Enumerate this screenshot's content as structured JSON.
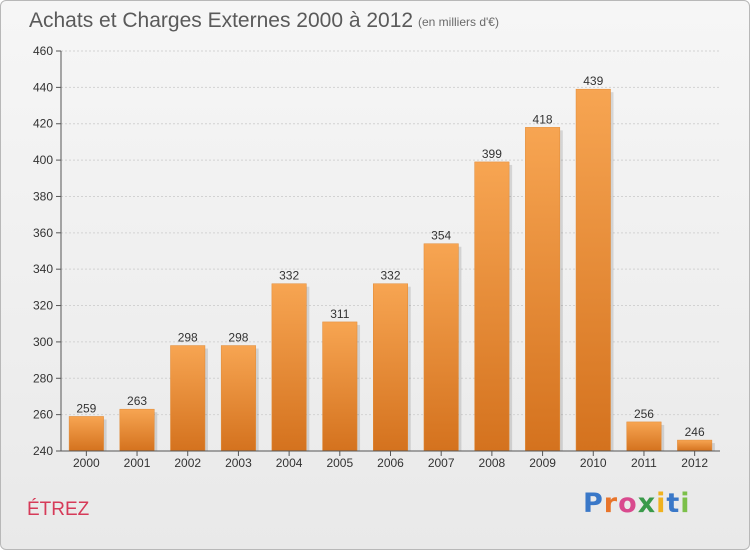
{
  "header": {
    "title": "Achats et Charges Externes 2000 à 2012",
    "subtitle": "(en milliers d'€)"
  },
  "footer": {
    "location": "ÉTREZ",
    "logo_text": "Proxiti",
    "logo_colors": [
      "#3a78c8",
      "#e8742a",
      "#d94a8e",
      "#3a9a4a",
      "#f0b21e",
      "#3a78c8",
      "#7cc04a"
    ]
  },
  "colors": {
    "bar_top": "#f7a552",
    "bar_bottom": "#d4721e",
    "axis": "#555555",
    "grid": "#d2d2d2",
    "text": "#333333"
  },
  "chart_data": {
    "type": "bar",
    "title": "Achats et Charges Externes 2000 à 2012",
    "subtitle": "(en milliers d'€)",
    "categories": [
      "2000",
      "2001",
      "2002",
      "2003",
      "2004",
      "2005",
      "2006",
      "2007",
      "2008",
      "2009",
      "2010",
      "2011",
      "2012"
    ],
    "values": [
      259,
      263,
      298,
      298,
      332,
      311,
      332,
      354,
      399,
      418,
      439,
      256,
      246
    ],
    "ylim": [
      240,
      460
    ],
    "yticks": [
      240,
      260,
      280,
      300,
      320,
      340,
      360,
      380,
      400,
      420,
      440,
      460
    ],
    "grid": true,
    "legend": "none",
    "data_labels": true
  }
}
